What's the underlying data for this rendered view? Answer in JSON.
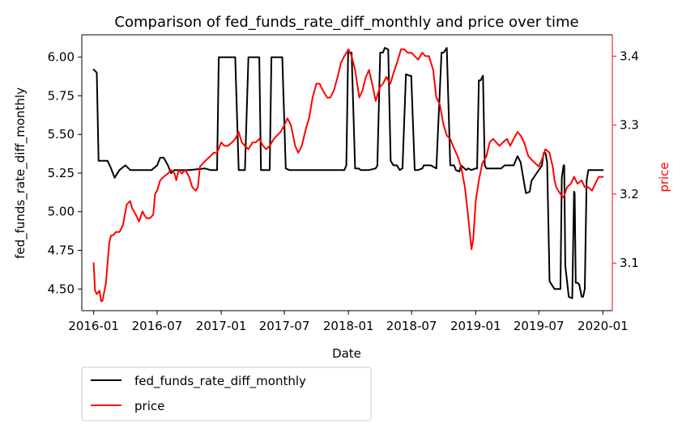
{
  "chart_data": {
    "type": "line",
    "title": "Comparison of fed_funds_rate_diff_monthly and price over time",
    "xlabel": "Date",
    "ylabel_left": "fed_funds_rate_diff_monthly",
    "ylabel_right": "price",
    "xlim": [
      "2015-11-28",
      "2020-01-28"
    ],
    "ylim_left": [
      4.36,
      6.145
    ],
    "ylim_right": [
      3.031,
      3.431
    ],
    "x_ticks": [
      "2016-01",
      "2016-07",
      "2017-01",
      "2017-07",
      "2018-01",
      "2018-07",
      "2019-01",
      "2019-07",
      "2020-01"
    ],
    "y_ticks_left": [
      "4.50",
      "4.75",
      "5.00",
      "5.25",
      "5.50",
      "5.75",
      "6.00"
    ],
    "y_ticks_right": [
      "3.1",
      "3.2",
      "3.3",
      "3.4"
    ],
    "grid": false,
    "legend_placement": "below-left",
    "colors": {
      "left_series": "#000000",
      "right_series": "#ff0000"
    },
    "series": [
      {
        "name": "fed_funds_rate_diff_monthly",
        "axis": "left",
        "x": [
          "2016-01-01",
          "2016-01-10",
          "2016-01-15",
          "2016-01-20",
          "2016-02-10",
          "2016-02-20",
          "2016-03-01",
          "2016-03-15",
          "2016-04-01",
          "2016-04-15",
          "2016-05-01",
          "2016-05-10",
          "2016-06-15",
          "2016-07-01",
          "2016-07-10",
          "2016-07-20",
          "2016-08-01",
          "2016-08-10",
          "2016-08-20",
          "2016-10-01",
          "2016-11-15",
          "2016-12-01",
          "2016-12-20",
          "2016-12-25",
          "2017-01-01",
          "2017-01-05",
          "2017-02-10",
          "2017-02-20",
          "2017-03-10",
          "2017-03-20",
          "2017-04-20",
          "2017-04-25",
          "2017-05-20",
          "2017-05-25",
          "2017-06-25",
          "2017-07-05",
          "2017-07-15",
          "2017-09-01",
          "2017-11-01",
          "2017-12-01",
          "2017-12-20",
          "2017-12-26",
          "2017-12-31",
          "2018-01-01",
          "2018-01-10",
          "2018-01-20",
          "2018-01-30",
          "2018-02-05",
          "2018-02-15",
          "2018-03-01",
          "2018-03-20",
          "2018-03-25",
          "2018-04-02",
          "2018-04-10",
          "2018-04-15",
          "2018-04-25",
          "2018-05-02",
          "2018-05-10",
          "2018-05-20",
          "2018-05-28",
          "2018-06-05",
          "2018-06-15",
          "2018-06-25",
          "2018-06-30",
          "2018-07-10",
          "2018-07-20",
          "2018-08-01",
          "2018-08-05",
          "2018-08-15",
          "2018-08-25",
          "2018-09-10",
          "2018-09-25",
          "2018-10-01",
          "2018-10-10",
          "2018-10-20",
          "2018-10-31",
          "2018-11-05",
          "2018-11-15",
          "2018-11-20",
          "2018-12-05",
          "2018-12-10",
          "2018-12-20",
          "2019-01-01",
          "2019-01-05",
          "2019-01-10",
          "2019-01-15",
          "2019-01-22",
          "2019-01-27",
          "2019-02-01",
          "2019-02-15",
          "2019-03-15",
          "2019-03-25",
          "2019-04-05",
          "2019-04-20",
          "2019-05-01",
          "2019-05-10",
          "2019-05-15",
          "2019-05-25",
          "2019-06-05",
          "2019-06-10",
          "2019-06-25",
          "2019-07-01",
          "2019-07-10",
          "2019-07-15",
          "2019-07-20",
          "2019-07-25",
          "2019-08-01",
          "2019-08-15",
          "2019-08-25",
          "2019-09-01",
          "2019-09-05",
          "2019-09-10",
          "2019-09-12",
          "2019-09-15",
          "2019-09-20",
          "2019-09-25",
          "2019-10-05",
          "2019-10-10",
          "2019-10-12",
          "2019-10-15",
          "2019-10-20",
          "2019-10-25",
          "2019-11-01",
          "2019-11-05",
          "2019-11-10",
          "2019-11-15",
          "2019-11-20",
          "2019-12-01",
          "2019-12-20",
          "2020-01-01"
        ],
        "values": [
          5.92,
          5.9,
          5.33,
          5.33,
          5.33,
          5.28,
          5.22,
          5.27,
          5.3,
          5.27,
          5.27,
          5.27,
          5.27,
          5.3,
          5.35,
          5.35,
          5.3,
          5.25,
          5.27,
          5.27,
          5.28,
          5.27,
          5.27,
          6.0,
          6.0,
          6.0,
          6.0,
          5.27,
          5.27,
          6.0,
          6.0,
          5.27,
          5.27,
          6.0,
          6.0,
          5.28,
          5.27,
          5.27,
          5.27,
          5.27,
          5.27,
          5.3,
          6.03,
          6.03,
          6.03,
          5.28,
          5.28,
          5.27,
          5.27,
          5.27,
          5.28,
          5.3,
          6.03,
          6.03,
          6.06,
          6.05,
          5.33,
          5.3,
          5.3,
          5.27,
          5.28,
          5.89,
          5.88,
          5.88,
          5.27,
          5.27,
          5.28,
          5.3,
          5.3,
          5.3,
          5.28,
          6.03,
          6.03,
          6.06,
          5.3,
          5.3,
          5.27,
          5.26,
          5.3,
          5.27,
          5.28,
          5.27,
          5.28,
          5.28,
          5.85,
          5.85,
          5.88,
          5.3,
          5.28,
          5.28,
          5.28,
          5.3,
          5.3,
          5.3,
          5.36,
          5.32,
          5.25,
          5.12,
          5.13,
          5.2,
          5.25,
          5.27,
          5.3,
          5.38,
          5.38,
          5.32,
          4.55,
          4.5,
          4.5,
          4.5,
          5.22,
          5.3,
          5.3,
          4.65,
          4.55,
          4.45,
          4.44,
          5.13,
          5.12,
          4.54,
          4.54,
          4.53,
          4.45,
          4.45,
          4.5,
          5.2,
          5.27,
          5.27,
          5.27,
          5.27
        ]
      },
      {
        "name": "price",
        "axis": "right",
        "x": [
          "2016-01-01",
          "2016-01-05",
          "2016-01-10",
          "2016-01-18",
          "2016-01-22",
          "2016-01-26",
          "2016-02-01",
          "2016-02-05",
          "2016-02-10",
          "2016-02-15",
          "2016-02-20",
          "2016-02-25",
          "2016-03-05",
          "2016-03-15",
          "2016-03-25",
          "2016-04-05",
          "2016-04-15",
          "2016-04-20",
          "2016-05-01",
          "2016-05-10",
          "2016-05-20",
          "2016-05-25",
          "2016-06-01",
          "2016-06-10",
          "2016-06-20",
          "2016-06-25",
          "2016-07-01",
          "2016-07-10",
          "2016-07-20",
          "2016-08-01",
          "2016-08-10",
          "2016-08-20",
          "2016-08-25",
          "2016-09-01",
          "2016-09-10",
          "2016-09-20",
          "2016-10-01",
          "2016-10-10",
          "2016-10-20",
          "2016-10-26",
          "2016-11-01",
          "2016-11-10",
          "2016-11-20",
          "2016-12-01",
          "2016-12-10",
          "2016-12-20",
          "2017-01-01",
          "2017-01-10",
          "2017-01-20",
          "2017-02-01",
          "2017-02-10",
          "2017-02-20",
          "2017-03-01",
          "2017-03-10",
          "2017-03-20",
          "2017-04-01",
          "2017-04-10",
          "2017-04-20",
          "2017-05-01",
          "2017-05-10",
          "2017-05-20",
          "2017-06-01",
          "2017-06-10",
          "2017-06-20",
          "2017-07-01",
          "2017-07-10",
          "2017-07-20",
          "2017-08-01",
          "2017-08-10",
          "2017-08-20",
          "2017-09-01",
          "2017-09-10",
          "2017-09-20",
          "2017-10-01",
          "2017-10-10",
          "2017-10-20",
          "2017-11-01",
          "2017-11-10",
          "2017-11-20",
          "2017-12-01",
          "2017-12-10",
          "2017-12-20",
          "2018-01-01",
          "2018-01-10",
          "2018-01-20",
          "2018-02-01",
          "2018-02-10",
          "2018-02-20",
          "2018-03-01",
          "2018-03-10",
          "2018-03-20",
          "2018-04-01",
          "2018-04-10",
          "2018-04-20",
          "2018-05-01",
          "2018-05-10",
          "2018-05-20",
          "2018-06-01",
          "2018-06-10",
          "2018-06-20",
          "2018-07-01",
          "2018-07-10",
          "2018-07-20",
          "2018-08-01",
          "2018-08-10",
          "2018-08-20",
          "2018-09-01",
          "2018-09-10",
          "2018-09-20",
          "2018-10-01",
          "2018-10-10",
          "2018-10-20",
          "2018-11-01",
          "2018-11-10",
          "2018-11-20",
          "2018-12-01",
          "2018-12-10",
          "2018-12-20",
          "2018-12-25",
          "2019-01-01",
          "2019-01-10",
          "2019-01-20",
          "2019-02-01",
          "2019-02-10",
          "2019-02-20",
          "2019-03-01",
          "2019-03-10",
          "2019-03-20",
          "2019-04-01",
          "2019-04-10",
          "2019-04-20",
          "2019-05-01",
          "2019-05-10",
          "2019-05-20",
          "2019-06-01",
          "2019-06-10",
          "2019-06-20",
          "2019-07-01",
          "2019-07-10",
          "2019-07-20",
          "2019-08-01",
          "2019-08-05",
          "2019-08-10",
          "2019-08-15",
          "2019-08-20",
          "2019-09-01",
          "2019-09-10",
          "2019-09-20",
          "2019-10-01",
          "2019-10-10",
          "2019-10-20",
          "2019-11-01",
          "2019-11-10",
          "2019-11-20",
          "2019-12-01",
          "2019-12-10",
          "2019-12-20",
          "2020-01-01"
        ],
        "values": [
          3.1,
          3.06,
          3.055,
          3.06,
          3.045,
          3.045,
          3.06,
          3.07,
          3.1,
          3.13,
          3.14,
          3.14,
          3.145,
          3.145,
          3.155,
          3.185,
          3.19,
          3.18,
          3.17,
          3.16,
          3.175,
          3.17,
          3.165,
          3.165,
          3.17,
          3.2,
          3.205,
          3.22,
          3.225,
          3.23,
          3.235,
          3.23,
          3.22,
          3.235,
          3.23,
          3.235,
          3.225,
          3.21,
          3.205,
          3.21,
          3.24,
          3.245,
          3.25,
          3.255,
          3.26,
          3.26,
          3.275,
          3.27,
          3.27,
          3.275,
          3.28,
          3.29,
          3.275,
          3.27,
          3.265,
          3.275,
          3.275,
          3.28,
          3.27,
          3.265,
          3.27,
          3.28,
          3.285,
          3.29,
          3.3,
          3.31,
          3.3,
          3.27,
          3.26,
          3.27,
          3.295,
          3.31,
          3.34,
          3.36,
          3.36,
          3.35,
          3.34,
          3.34,
          3.35,
          3.37,
          3.39,
          3.4,
          3.41,
          3.4,
          3.38,
          3.34,
          3.35,
          3.37,
          3.38,
          3.36,
          3.335,
          3.355,
          3.36,
          3.37,
          3.36,
          3.375,
          3.39,
          3.41,
          3.41,
          3.405,
          3.405,
          3.4,
          3.395,
          3.405,
          3.4,
          3.4,
          3.38,
          3.34,
          3.33,
          3.3,
          3.285,
          3.28,
          3.265,
          3.255,
          3.24,
          3.21,
          3.17,
          3.12,
          3.135,
          3.19,
          3.22,
          3.245,
          3.255,
          3.275,
          3.28,
          3.275,
          3.27,
          3.275,
          3.28,
          3.27,
          3.28,
          3.29,
          3.285,
          3.275,
          3.255,
          3.25,
          3.245,
          3.24,
          3.25,
          3.265,
          3.26,
          3.25,
          3.24,
          3.22,
          3.21,
          3.2,
          3.195,
          3.21,
          3.215,
          3.225,
          3.215,
          3.22,
          3.21,
          3.21,
          3.205,
          3.215,
          3.225,
          3.225
        ]
      }
    ]
  }
}
